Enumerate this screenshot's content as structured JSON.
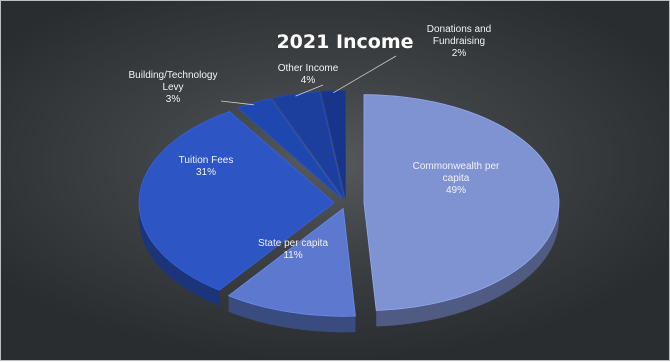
{
  "chart_data": {
    "type": "pie",
    "title": "2021 Income",
    "slices": [
      {
        "label": "Commonwealth per capita",
        "lines": [
          "Commonwealth per",
          "capita"
        ],
        "value": 49,
        "value_label": "49%",
        "color": "#7f93d3"
      },
      {
        "label": "State per capita",
        "lines": [
          "State per capita"
        ],
        "value": 11,
        "value_label": "11%",
        "color": "#5d79cf"
      },
      {
        "label": "Tuition Fees",
        "lines": [
          "Tuition Fees"
        ],
        "value": 31,
        "value_label": "31%",
        "color": "#2d55c4"
      },
      {
        "label": "Building/Technology Levy",
        "lines": [
          "Building/Technology",
          "Levy"
        ],
        "value": 3,
        "value_label": "3%",
        "color": "#1f47b0"
      },
      {
        "label": "Other Income",
        "lines": [
          "Other Income"
        ],
        "value": 4,
        "value_label": "4%",
        "color": "#1c3f9e"
      },
      {
        "label": "Donations and Fundraising",
        "lines": [
          "Donations and",
          "Fundraising"
        ],
        "value": 2,
        "value_label": "2%",
        "color": "#17358a"
      }
    ],
    "legend": "none",
    "style": "3d-exploded"
  }
}
